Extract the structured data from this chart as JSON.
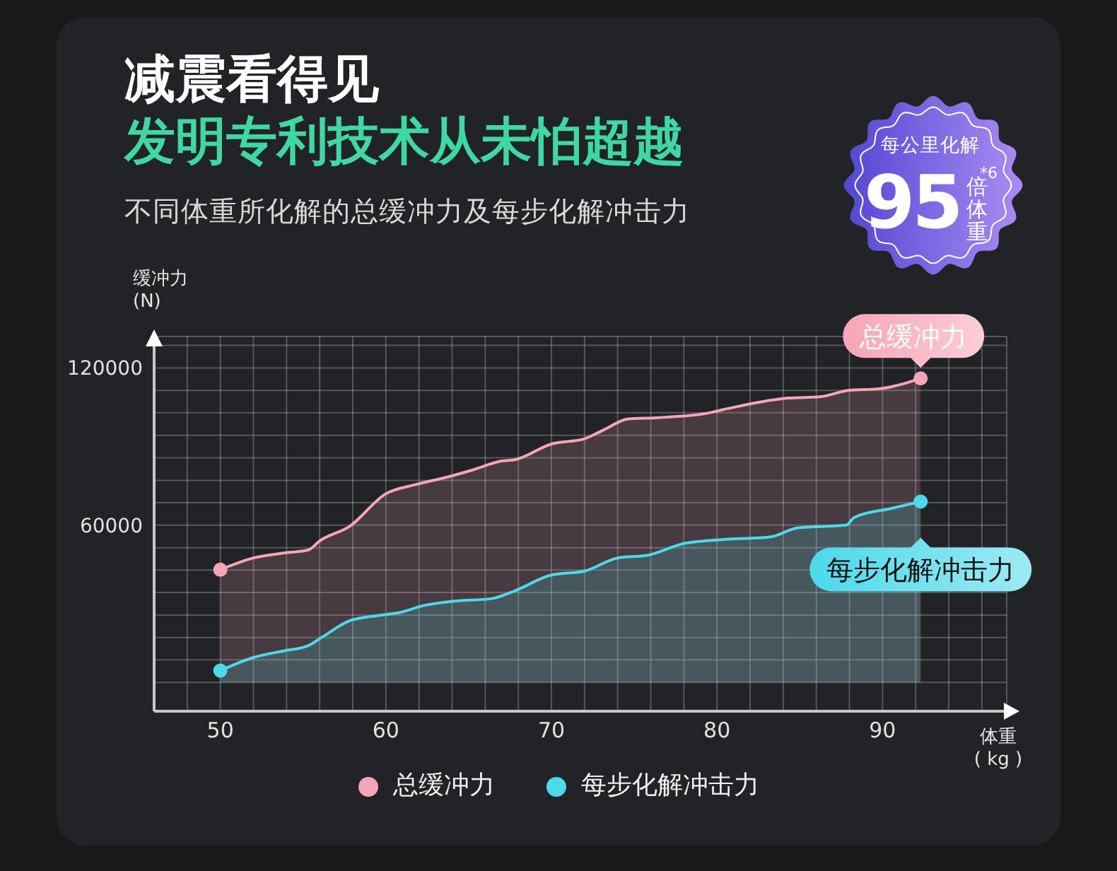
{
  "chart_data": {
    "type": "area",
    "title": "减震看得见",
    "subtitle": "发明专利技术从未怕超越",
    "xlabel": "体重\n( kg )",
    "ylabel": "缓冲力\n(N)",
    "annotations": [
      "不同体重所化解的总缓冲力及每步化解冲击力",
      "每公里化解",
      "95",
      "倍体重",
      "*6",
      {
        "text": "总缓冲力",
        "x": 92.3,
        "y": 116000
      },
      {
        "text": "每步化解冲击力",
        "x": 92.3,
        "y": 69000
      }
    ],
    "series": [
      {
        "name": "总缓冲力",
        "color": "#f6a5b6",
        "x": [
          50,
          52,
          54,
          55.3,
          56,
          57.8,
          60,
          61.8,
          63.8,
          65.2,
          67,
          67.8,
          70,
          72,
          73.2,
          74.6,
          76.3,
          79.2,
          80.3,
          82.6,
          84.3,
          86.2,
          88,
          89.7,
          92.3
        ],
        "values": [
          43000,
          47500,
          49500,
          50500,
          54000,
          59500,
          72000,
          75500,
          78500,
          81000,
          84500,
          85000,
          91000,
          93000,
          96500,
          100500,
          101000,
          102500,
          104000,
          107000,
          108500,
          109000,
          111500,
          112000,
          116000
        ]
      },
      {
        "name": "每步化解冲击力",
        "color": "#4cd9ea",
        "x": [
          50,
          52,
          53.8,
          55.3,
          56.2,
          57.8,
          59.5,
          60.7,
          62.4,
          64.1,
          66.4,
          67.8,
          70,
          72,
          74,
          75.8,
          78,
          80.3,
          83.2,
          84.9,
          87.8,
          88.3,
          90.6,
          92.3
        ],
        "values": [
          4500,
          9500,
          12000,
          14000,
          17500,
          23500,
          25500,
          26500,
          29500,
          31000,
          32000,
          35000,
          41000,
          42500,
          47500,
          48500,
          53000,
          54500,
          55500,
          59000,
          60000,
          63000,
          66500,
          69000
        ]
      }
    ],
    "xlim": [
      46,
      97.5
    ],
    "xticks": [
      {
        "value": 48,
        "label": null
      },
      50,
      {
        "value": 52,
        "label": null
      },
      {
        "value": 54,
        "label": null
      },
      {
        "value": 56,
        "label": null
      },
      {
        "value": 58,
        "label": null
      },
      60,
      {
        "value": 62,
        "label": null
      },
      {
        "value": 64,
        "label": null
      },
      {
        "value": 66,
        "label": null
      },
      {
        "value": 68,
        "label": null
      },
      70,
      {
        "value": 72,
        "label": null
      },
      {
        "value": 74,
        "label": null
      },
      {
        "value": 76,
        "label": null
      },
      {
        "value": 78,
        "label": null
      },
      80,
      {
        "value": 82,
        "label": null
      },
      {
        "value": 84,
        "label": null
      },
      {
        "value": 86,
        "label": null
      },
      {
        "value": 88,
        "label": null
      },
      90,
      {
        "value": 92,
        "label": null
      },
      {
        "value": 94,
        "label": null
      },
      {
        "value": 96,
        "label": null
      }
    ],
    "ylim": [
      -11000,
      132000
    ],
    "yticks": [
      {
        "value": 0,
        "label": null
      },
      {
        "value": 8600,
        "label": null
      },
      {
        "value": 17100,
        "label": null
      },
      {
        "value": 25700,
        "label": null
      },
      {
        "value": 34300,
        "label": null
      },
      {
        "value": 42900,
        "label": null
      },
      {
        "value": 51400,
        "label": null
      },
      60000,
      {
        "value": 68600,
        "label": null
      },
      {
        "value": 77100,
        "label": null
      },
      {
        "value": 85700,
        "label": null
      },
      {
        "value": 94300,
        "label": null
      },
      {
        "value": 102900,
        "label": null
      },
      {
        "value": 111400,
        "label": null
      },
      120000,
      {
        "value": 128600,
        "label": null
      }
    ],
    "grid": true,
    "legend": "bottom"
  }
}
